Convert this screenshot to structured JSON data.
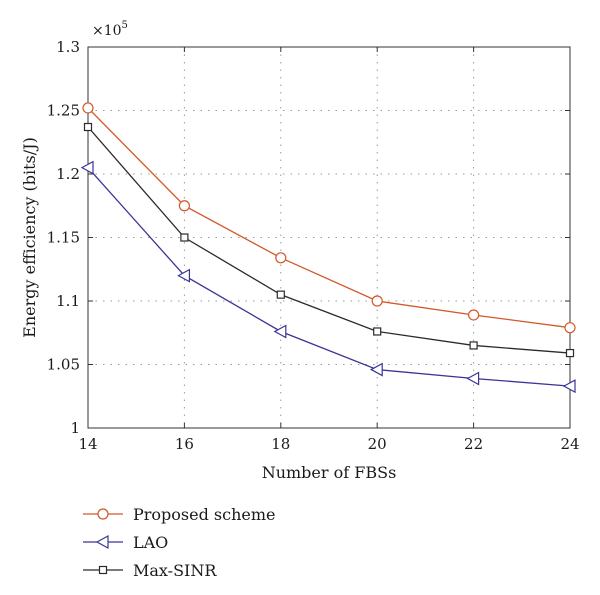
{
  "chart_data": {
    "type": "line",
    "title": "",
    "xlabel": "Number of FBSs",
    "ylabel": "Energy efficiency (bits/J)",
    "y_multiplier": "×10",
    "y_multiplier_exponent": "5",
    "x": [
      14,
      16,
      18,
      20,
      22,
      24
    ],
    "xlim": [
      14,
      24
    ],
    "ylim": [
      1.0,
      1.3
    ],
    "xticks": [
      "14",
      "16",
      "18",
      "20",
      "22",
      "24"
    ],
    "yticks": [
      "1",
      "1.05",
      "1.1",
      "1.15",
      "1.2",
      "1.25",
      "1.3"
    ],
    "grid": true,
    "legend_position": "below",
    "series": [
      {
        "name": "Proposed scheme",
        "marker": "circle",
        "color": "#d4572a",
        "values": [
          1.252,
          1.175,
          1.134,
          1.1,
          1.089,
          1.079
        ]
      },
      {
        "name": "LAO",
        "marker": "triangle-left",
        "color": "#3a3596",
        "values": [
          1.205,
          1.12,
          1.076,
          1.046,
          1.039,
          1.033
        ]
      },
      {
        "name": "Max-SINR",
        "marker": "square",
        "color": "#2b2b2b",
        "values": [
          1.237,
          1.15,
          1.105,
          1.076,
          1.065,
          1.059
        ]
      }
    ]
  }
}
